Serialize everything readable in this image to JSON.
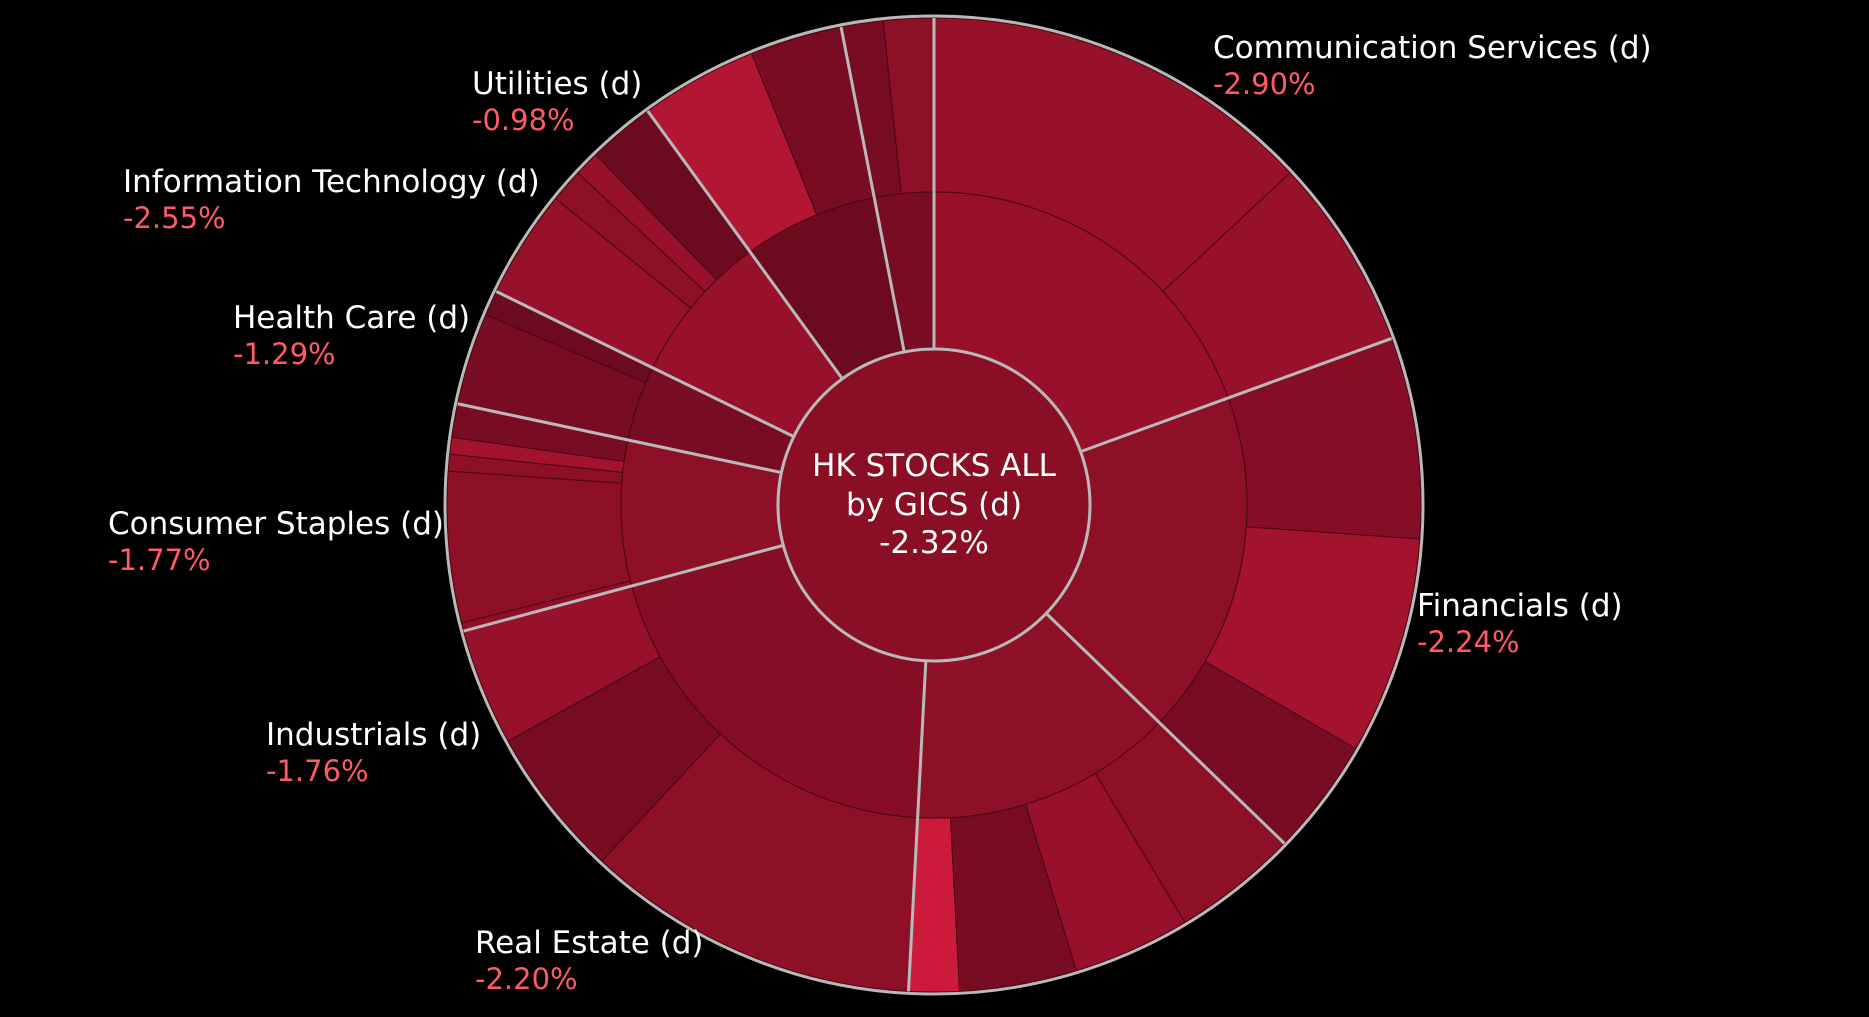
{
  "chart_data": {
    "type": "sunburst",
    "center": {
      "line1": "HK STOCKS ALL",
      "line2": "by GICS (d)",
      "value": "-2.32%"
    },
    "colors": {
      "background": "#000000",
      "divider": "#b9b9b9",
      "label_text": "#ffffff",
      "negative_text": "#ff5a66",
      "center_fill": "#8a0e24",
      "shades": [
        "#6c0a1f",
        "#780c22",
        "#850e26",
        "#8e1027",
        "#97112a",
        "#a3132e",
        "#b31633",
        "#cc1a3a"
      ]
    },
    "sectors": [
      {
        "name": "Communication Services (d)",
        "change": "-2.90%",
        "start": 0,
        "end": 70,
        "mid_shade": 4,
        "children": [
          {
            "start": 0,
            "end": 47,
            "shade": 4
          },
          {
            "start": 47,
            "end": 70,
            "shade": 4
          }
        ]
      },
      {
        "name": "Financials (d)",
        "change": "-2.24%",
        "start": 70,
        "end": 134,
        "mid_shade": 3,
        "children": [
          {
            "start": 70,
            "end": 94,
            "shade": 2
          },
          {
            "start": 94,
            "end": 120,
            "shade": 5
          },
          {
            "start": 120,
            "end": 134,
            "shade": 1
          }
        ]
      },
      {
        "name": "Real Estate (d)",
        "change": "-2.20%",
        "start": 134,
        "end": 183,
        "mid_shade": 3,
        "children": [
          {
            "start": 134,
            "end": 149,
            "shade": 3
          },
          {
            "start": 149,
            "end": 163,
            "shade": 4
          },
          {
            "start": 163,
            "end": 177,
            "shade": 1
          },
          {
            "start": 177,
            "end": 183,
            "shade": 7
          }
        ]
      },
      {
        "name": "Industrials (d)",
        "change": "-1.76%",
        "start": 183,
        "end": 255,
        "mid_shade": 2,
        "children": [
          {
            "start": 183,
            "end": 223,
            "shade": 3
          },
          {
            "start": 223,
            "end": 241,
            "shade": 1
          },
          {
            "start": 241,
            "end": 255,
            "shade": 4
          }
        ]
      },
      {
        "name": "Consumer Staples (d)",
        "change": "-1.77%",
        "start": 255,
        "end": 282,
        "mid_shade": 3,
        "children": [
          {
            "start": 255,
            "end": 256,
            "shade": 3
          },
          {
            "start": 256,
            "end": 274,
            "shade": 3
          },
          {
            "start": 274,
            "end": 276,
            "shade": 3
          },
          {
            "start": 276,
            "end": 278,
            "shade": 5
          },
          {
            "start": 278,
            "end": 282,
            "shade": 1
          }
        ]
      },
      {
        "name": "Health Care (d)",
        "change": "-1.29%",
        "start": 282,
        "end": 296,
        "mid_shade": 1,
        "children": [
          {
            "start": 282,
            "end": 293,
            "shade": 1
          },
          {
            "start": 293,
            "end": 296,
            "shade": 0
          }
        ]
      },
      {
        "name": "Information Technology (d)",
        "change": "-2.55%",
        "start": 296,
        "end": 324,
        "mid_shade": 4,
        "children": [
          {
            "start": 296,
            "end": 309,
            "shade": 4
          },
          {
            "start": 309,
            "end": 313,
            "shade": 3
          },
          {
            "start": 313,
            "end": 316,
            "shade": 4
          },
          {
            "start": 316,
            "end": 324,
            "shade": 0
          }
        ]
      },
      {
        "name": "Utilities (d)",
        "change": "-0.98%",
        "start": 324,
        "end": 349,
        "mid_shade": 0,
        "children": [
          {
            "start": 324,
            "end": 338,
            "shade": 6
          },
          {
            "start": 338,
            "end": 349,
            "shade": 1
          }
        ]
      },
      {
        "name": "",
        "change": "",
        "start": 349,
        "end": 360,
        "mid_shade": 1,
        "children": [
          {
            "start": 349,
            "end": 354,
            "shade": 1
          },
          {
            "start": 354,
            "end": 360,
            "shade": 3
          }
        ]
      }
    ]
  }
}
